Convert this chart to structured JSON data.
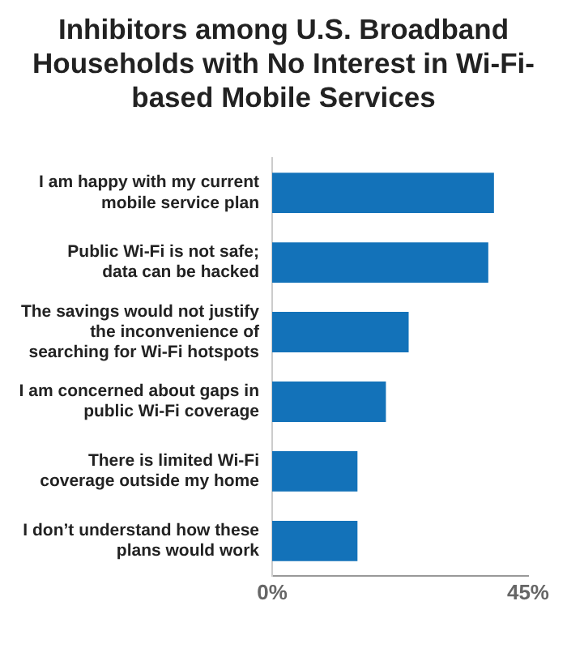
{
  "chart_data": {
    "type": "bar",
    "orientation": "horizontal",
    "title": "Inhibitors among U.S. Broadband Households with No Interest in Wi-Fi-based Mobile Services",
    "categories": [
      "I am happy with my current mobile service plan",
      "Public Wi-Fi is not safe; data can be hacked",
      "The savings would not justify the inconvenience of searching for Wi-Fi hotspots",
      "I am concerned about gaps in public Wi-Fi coverage",
      "There is limited Wi-Fi coverage outside my home",
      "I don’t understand how these plans would work"
    ],
    "values": [
      39,
      38,
      24,
      20,
      15,
      15
    ],
    "color": "#1372b9",
    "xlim": [
      0,
      45
    ],
    "xticks": [
      {
        "value": 0,
        "label": "0%"
      },
      {
        "value": 45,
        "label": "45%"
      }
    ],
    "grid": false,
    "legend": false
  }
}
